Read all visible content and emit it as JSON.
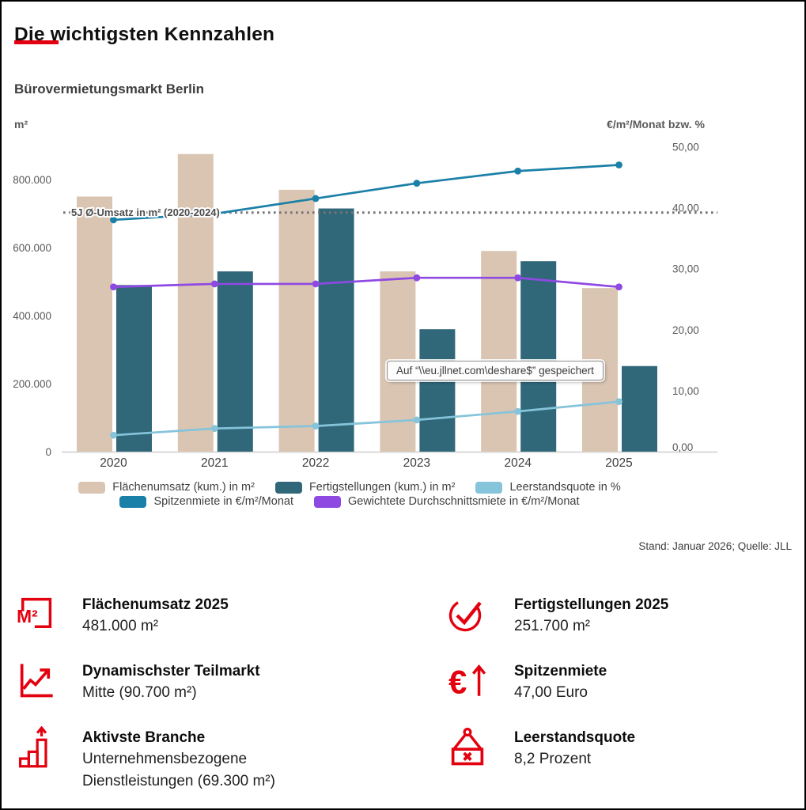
{
  "header": {
    "title": "Die wichtigsten Kennzahlen",
    "subtitle": "Bürovermietungsmarkt Berlin"
  },
  "chart_data": {
    "type": "bar+line combo",
    "title": "Bürovermietungsmarkt Berlin",
    "categories": [
      "2020",
      "2021",
      "2022",
      "2023",
      "2024",
      "2025"
    ],
    "left_axis": {
      "title": "m²",
      "tick_values": [
        0,
        200000,
        400000,
        600000,
        800000
      ],
      "tick_labels": [
        "0",
        "200.000",
        "400.000",
        "600.000",
        "800.000"
      ],
      "range": [
        0,
        900000
      ]
    },
    "right_axis": {
      "title": "€/m²/Monat bzw. %",
      "tick_values": [
        0,
        10,
        20,
        30,
        40,
        50
      ],
      "tick_labels": [
        "0,00",
        "10,00",
        "20,00",
        "30,00",
        "40,00",
        "50,00"
      ],
      "range": [
        0,
        50
      ]
    },
    "series": [
      {
        "name": "Flächenumsatz (kum.) in m²",
        "type": "bar",
        "axis": "left",
        "color": "#d9c5b2",
        "values": [
          750000,
          875000,
          770000,
          530000,
          590000,
          481000
        ]
      },
      {
        "name": "Fertigstellungen (kum.) in m²",
        "type": "bar",
        "axis": "left",
        "color": "#30687a",
        "values": [
          490000,
          530000,
          715000,
          360000,
          560000,
          251700
        ]
      },
      {
        "name": "Spitzenmiete in €/m²/Monat",
        "type": "line",
        "axis": "right",
        "color": "#1b80a8",
        "values": [
          38,
          39,
          41.5,
          44,
          46,
          47
        ]
      },
      {
        "name": "Gewichtete Durchschnittsmiete in €/m²/Monat",
        "type": "line",
        "axis": "right",
        "color": "#8f49e3",
        "values": [
          27,
          27.5,
          27.5,
          28.5,
          28.5,
          27
        ]
      },
      {
        "name": "Leerstandsquote in %",
        "type": "line",
        "axis": "right",
        "color": "#85c4da",
        "values": [
          2.7,
          3.8,
          4.2,
          5.2,
          6.6,
          8.2
        ]
      }
    ],
    "reference_line": {
      "label": "5J Ø-Umsatz in m² (2020-2024)",
      "value": 703000,
      "axis": "left",
      "style": "dotted",
      "color": "#757575"
    },
    "legend_rows": [
      [
        0,
        1,
        4
      ],
      [
        2,
        3
      ]
    ],
    "legend_position": "bottom-center",
    "grid": false
  },
  "tooltip": {
    "text": "Auf “\\\\eu.jllnet.com\\deshare$” gespeichert"
  },
  "footnote": "Stand: Januar 2026; Quelle: JLL",
  "kpis": [
    {
      "icon": "m2-icon",
      "title": "Flächenumsatz 2025",
      "value": "481.000 m²"
    },
    {
      "icon": "check-circle-icon",
      "title": "Fertigstellungen 2025",
      "value": "251.700 m²"
    },
    {
      "icon": "trend-arrow-icon",
      "title": "Dynamischster Teilmarkt",
      "value": "Mitte (90.700 m²)"
    },
    {
      "icon": "euro-up-icon",
      "title": "Spitzenmiete",
      "value": "47,00 Euro"
    },
    {
      "icon": "bar-steps-arrow-icon",
      "title": "Aktivste Branche",
      "value": "Unternehmensbezogene Dienstleistungen (69.300 m²)"
    },
    {
      "icon": "vacancy-sign-icon",
      "title": "Leerstandsquote",
      "value": "8,2 Prozent"
    }
  ]
}
